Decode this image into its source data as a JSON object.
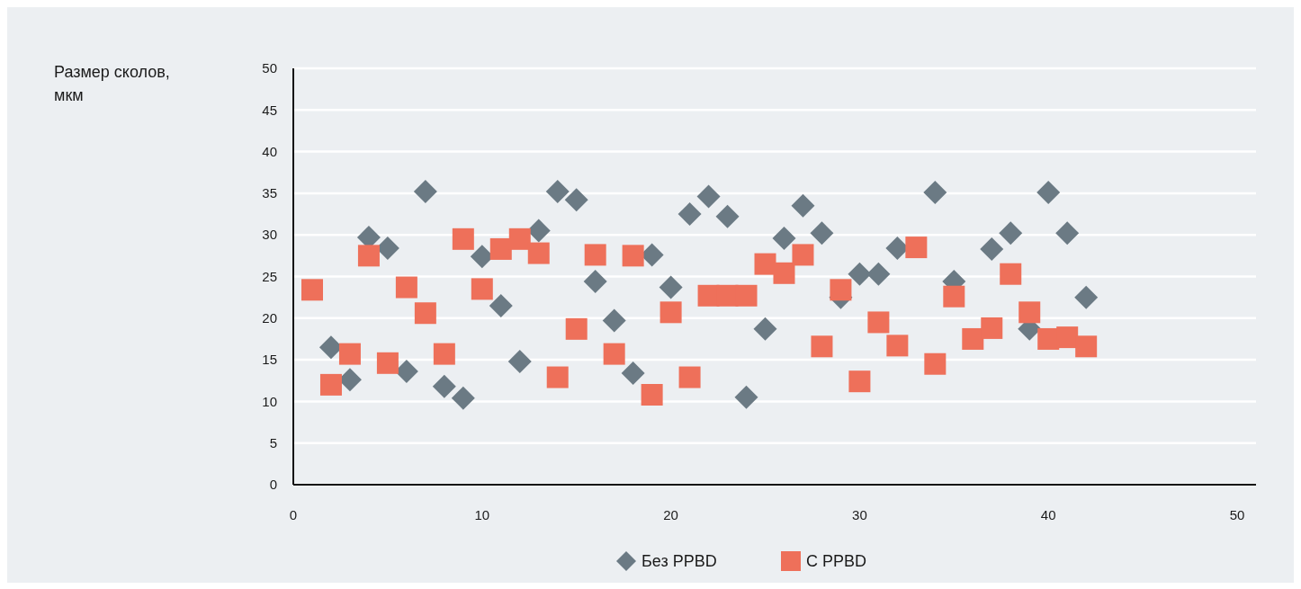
{
  "chart_data": {
    "type": "scatter",
    "annotations": [
      "Размер сколов, мкм"
    ],
    "xlim": [
      0,
      51
    ],
    "xticks": [
      0,
      10,
      20,
      30,
      40,
      50
    ],
    "ylim": [
      0,
      50
    ],
    "yticks": [
      0,
      5,
      10,
      15,
      20,
      25,
      30,
      35,
      40,
      45,
      50
    ],
    "grid": "y",
    "legend": "bottom",
    "series": [
      {
        "name": "Без PPBD",
        "color": "#6b7a84",
        "marker": "diamond",
        "x": [
          2,
          3,
          4,
          5,
          6,
          7,
          8,
          9,
          10,
          11,
          12,
          13,
          14,
          15,
          16,
          17,
          18,
          19,
          20,
          21,
          22,
          23,
          24,
          25,
          26,
          27,
          28,
          29,
          30,
          31,
          32,
          34,
          35,
          37,
          38,
          39,
          40,
          41,
          42
        ],
        "values": [
          16.5,
          12.6,
          29.7,
          28.4,
          13.6,
          35.2,
          11.8,
          10.4,
          27.4,
          21.5,
          14.8,
          30.5,
          35.2,
          34.2,
          24.4,
          19.7,
          13.4,
          27.6,
          23.7,
          32.5,
          34.6,
          32.2,
          10.5,
          18.7,
          29.6,
          33.5,
          30.2,
          22.5,
          25.3,
          25.3,
          28.4,
          35.1,
          24.4,
          28.3,
          30.2,
          18.7,
          35.1,
          30.2,
          22.5
        ]
      },
      {
        "name": "С PPBD",
        "color": "#ee705a",
        "marker": "square",
        "x": [
          1,
          2,
          3,
          4,
          5,
          6,
          7,
          8,
          9,
          10,
          11,
          12,
          13,
          14,
          15,
          16,
          17,
          18,
          19,
          20,
          21,
          22,
          23,
          24,
          25,
          26,
          27,
          28,
          29,
          30,
          31,
          32,
          33,
          34,
          35,
          36,
          37,
          38,
          39,
          40,
          41,
          42
        ],
        "values": [
          23.4,
          12.0,
          15.7,
          27.5,
          14.6,
          23.7,
          20.6,
          15.7,
          29.5,
          23.5,
          28.3,
          29.5,
          27.8,
          12.9,
          18.7,
          27.6,
          15.7,
          27.5,
          10.8,
          20.7,
          12.9,
          22.7,
          22.7,
          22.7,
          26.5,
          25.4,
          27.6,
          16.6,
          23.4,
          12.4,
          19.5,
          16.7,
          28.5,
          14.5,
          22.6,
          17.5,
          18.8,
          25.3,
          20.7,
          17.5,
          17.7,
          16.6
        ]
      }
    ]
  }
}
